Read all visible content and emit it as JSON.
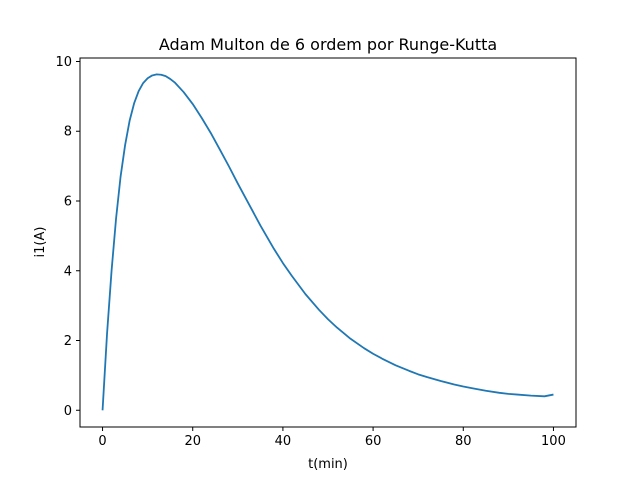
{
  "chart_data": {
    "type": "line",
    "title": "Adam Multon de 6 ordem por Runge-Kutta",
    "xlabel": "t(min)",
    "ylabel": "i1(A)",
    "xlim": [
      -5,
      105
    ],
    "ylim": [
      -0.48,
      10.1
    ],
    "xticks": [
      0,
      20,
      40,
      60,
      80,
      100
    ],
    "yticks": [
      0,
      2,
      4,
      6,
      8,
      10
    ],
    "grid": false,
    "colors": {
      "line": "#1f77b4",
      "axes": "#000000"
    },
    "series": [
      {
        "x": [
          0,
          1,
          2,
          3,
          4,
          5,
          6,
          7,
          8,
          9,
          10,
          11,
          12,
          13,
          14,
          15,
          16,
          18,
          20,
          22,
          24,
          26,
          28,
          30,
          32,
          35,
          38,
          40,
          42,
          45,
          48,
          50,
          52,
          55,
          58,
          60,
          62,
          65,
          68,
          70,
          72,
          75,
          78,
          80,
          82,
          85,
          88,
          90,
          92,
          95,
          98,
          100
        ],
        "y": [
          0,
          2.2,
          4.0,
          5.5,
          6.7,
          7.6,
          8.3,
          8.8,
          9.15,
          9.38,
          9.52,
          9.6,
          9.63,
          9.62,
          9.58,
          9.5,
          9.4,
          9.12,
          8.78,
          8.38,
          7.95,
          7.48,
          7.0,
          6.5,
          6.02,
          5.3,
          4.63,
          4.22,
          3.85,
          3.33,
          2.88,
          2.61,
          2.37,
          2.05,
          1.78,
          1.62,
          1.48,
          1.29,
          1.13,
          1.03,
          0.95,
          0.84,
          0.74,
          0.68,
          0.63,
          0.56,
          0.5,
          0.47,
          0.45,
          0.42,
          0.4,
          0.45
        ]
      }
    ]
  }
}
